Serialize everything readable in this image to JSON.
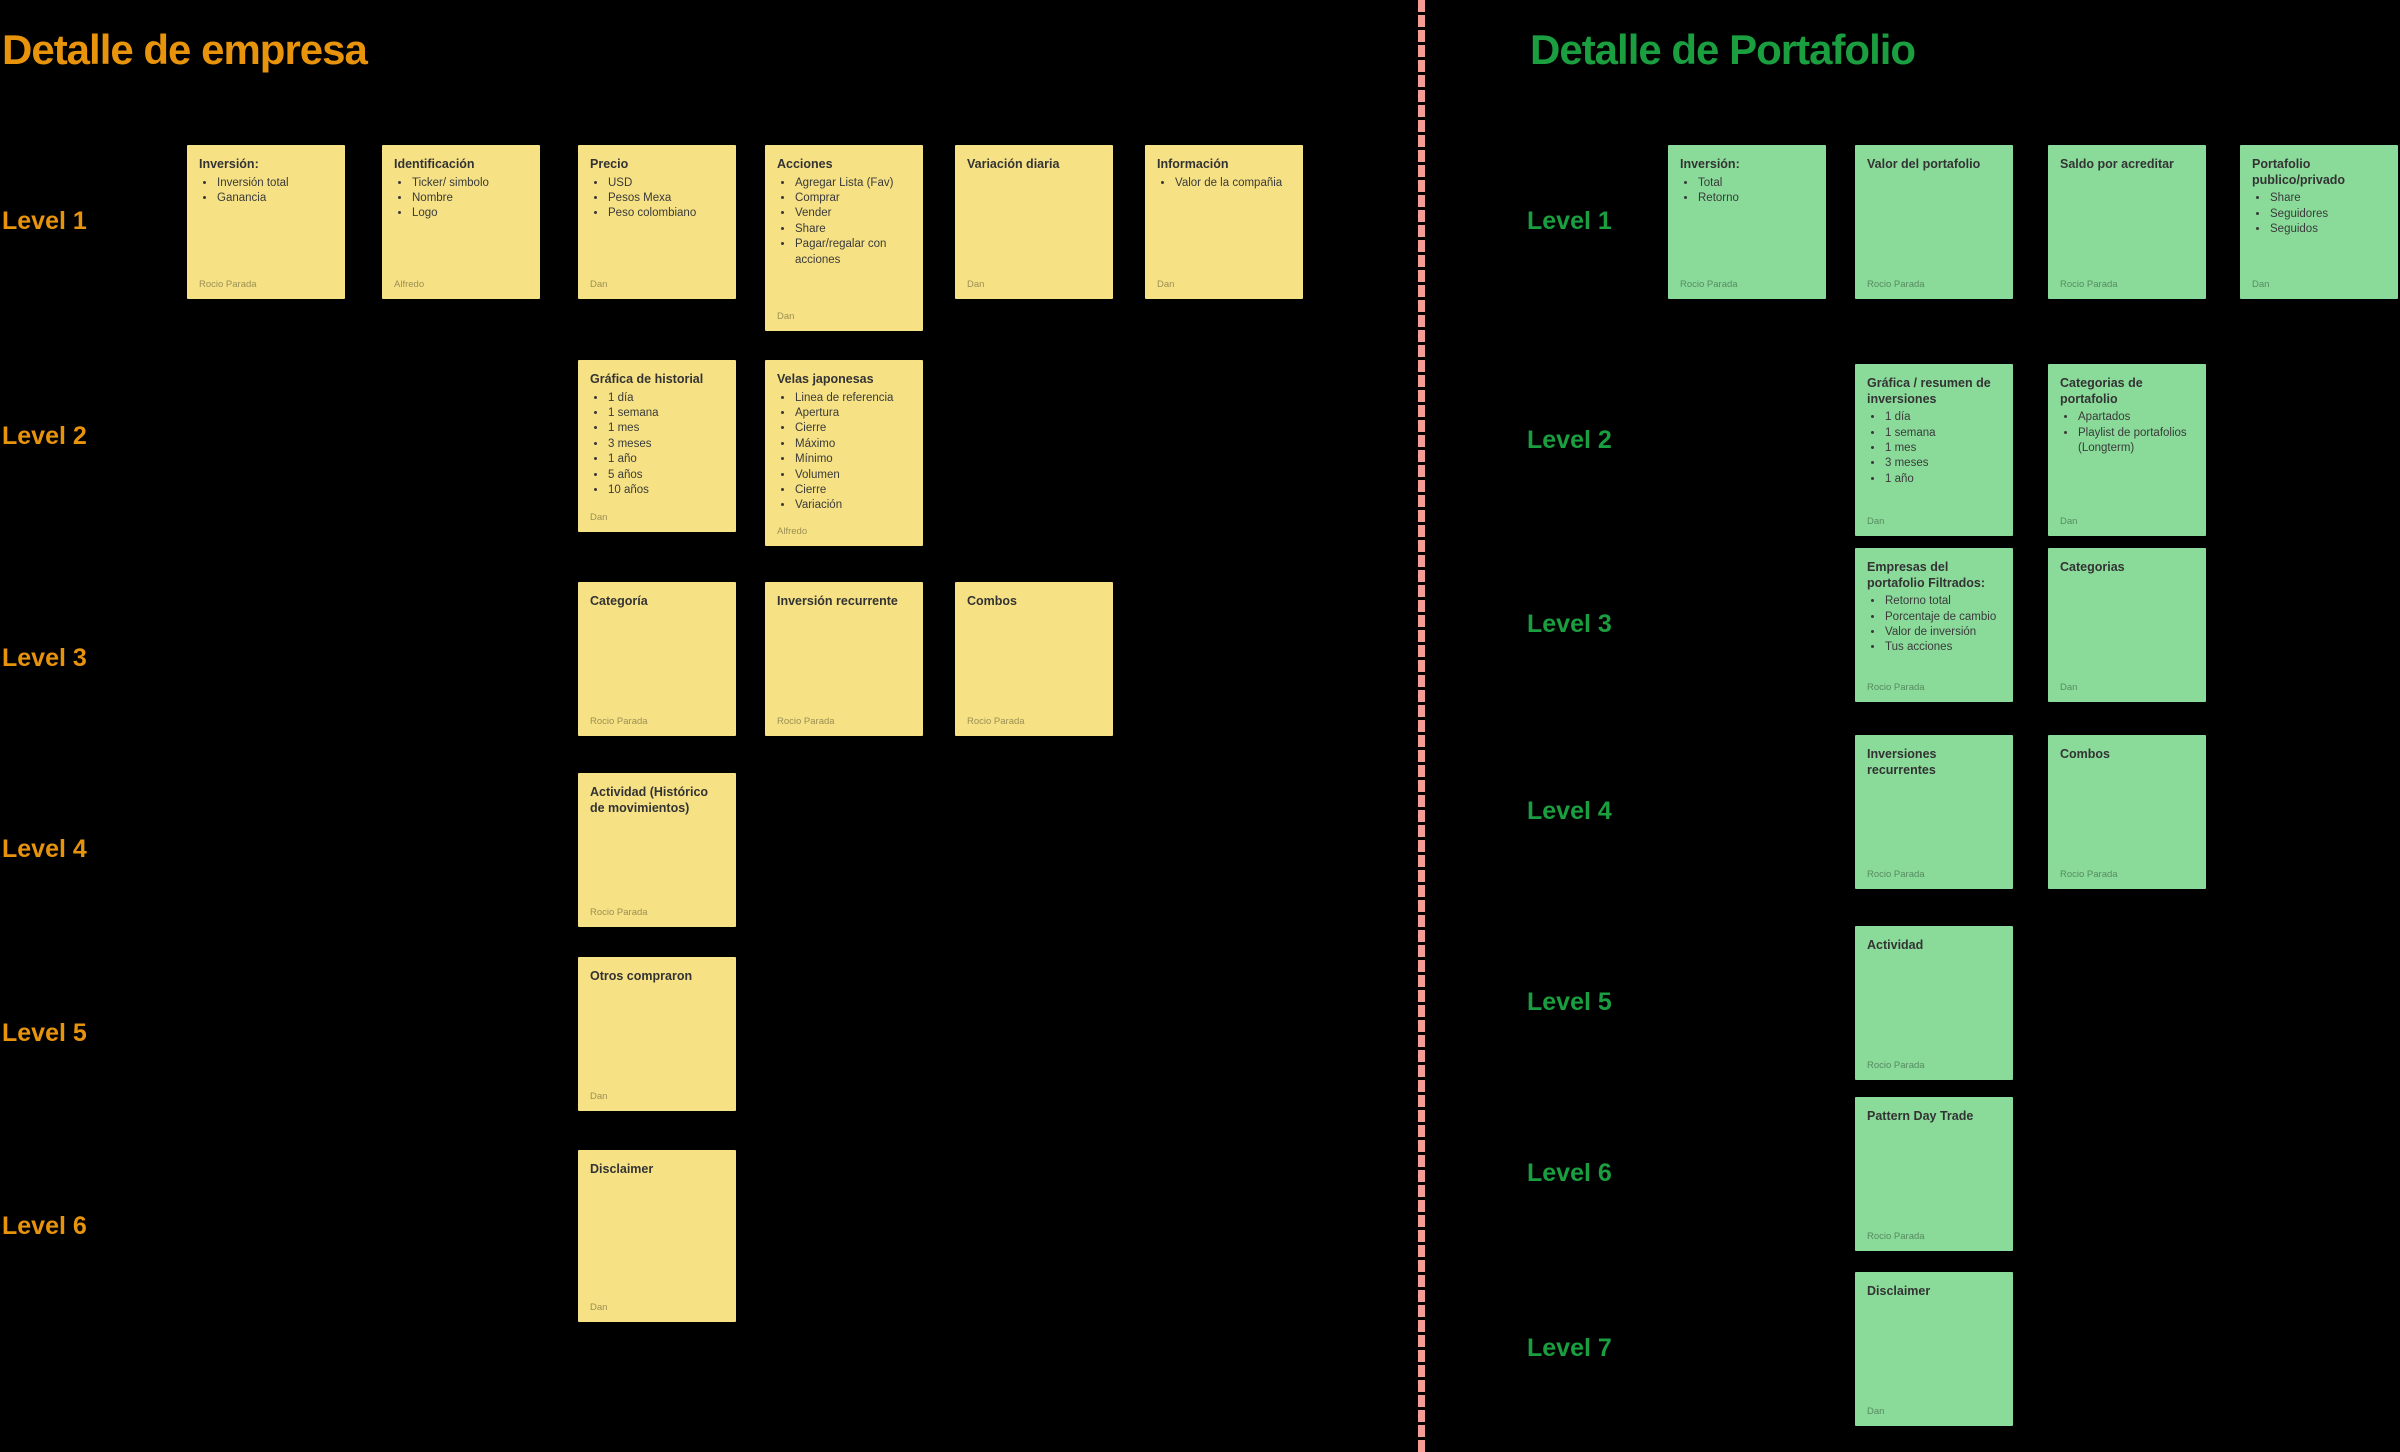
{
  "canvas": {
    "background": "#000000",
    "divider_color": "#F59C94"
  },
  "left_board": {
    "title": "Detalle de empresa",
    "accent_color": "#E8930C",
    "note_color": "#F6E285",
    "level_labels": [
      "Level 1",
      "Level 2",
      "Level 3",
      "Level 4",
      "Level 5",
      "Level 6"
    ],
    "notes": [
      {
        "level": 1,
        "col": 1,
        "title": "Inversión:",
        "bullets": [
          "Inversión total",
          "Ganancia"
        ],
        "author": "Rocio Parada",
        "size": "sm"
      },
      {
        "level": 1,
        "col": 2,
        "title": "Identificación",
        "bullets": [
          "Ticker/ simbolo",
          "Nombre",
          "Logo"
        ],
        "author": "Alfredo",
        "size": "sm"
      },
      {
        "level": 1,
        "col": 3,
        "title": "Precio",
        "bullets": [
          "USD",
          "Pesos Mexa",
          "Peso colombiano"
        ],
        "author": "Dan",
        "size": "sm"
      },
      {
        "level": 1,
        "col": 4,
        "title": "Acciones",
        "bullets": [
          "Agregar Lista (Fav)",
          "Comprar",
          "Vender",
          "Share",
          "Pagar/regalar con acciones"
        ],
        "author": "Dan",
        "size": "lg"
      },
      {
        "level": 1,
        "col": 5,
        "title": "Variación diaria",
        "bullets": [],
        "author": "Dan",
        "size": "sm"
      },
      {
        "level": 1,
        "col": 6,
        "title": "Información",
        "bullets": [
          "Valor de la compañia"
        ],
        "author": "Dan",
        "size": "sm"
      },
      {
        "level": 2,
        "col": 3,
        "title": "Gráfica de historial",
        "bullets": [
          "1 día",
          "1 semana",
          "1 mes",
          "3 meses",
          "1 año",
          "5 años",
          "10 años"
        ],
        "author": "Dan",
        "size": "md"
      },
      {
        "level": 2,
        "col": 4,
        "title": "Velas japonesas",
        "bullets": [
          "Linea de referencia",
          "Apertura",
          "Cierre",
          "Máximo",
          "Mínimo",
          "Volumen",
          "Cierre",
          "Variación"
        ],
        "author": "Alfredo",
        "size": "lg"
      },
      {
        "level": 3,
        "col": 3,
        "title": "Categoría",
        "bullets": [],
        "author": "Rocio Parada",
        "size": "sm"
      },
      {
        "level": 3,
        "col": 4,
        "title": "Inversión recurrente",
        "bullets": [],
        "author": "Rocio Parada",
        "size": "sm"
      },
      {
        "level": 3,
        "col": 5,
        "title": "Combos",
        "bullets": [],
        "author": "Rocio Parada",
        "size": "sm"
      },
      {
        "level": 4,
        "col": 3,
        "title": "Actividad (Histórico de movimientos)",
        "bullets": [],
        "author": "Rocio Parada",
        "size": "sm"
      },
      {
        "level": 5,
        "col": 3,
        "title": "Otros compraron",
        "bullets": [],
        "author": "Dan",
        "size": "sm"
      },
      {
        "level": 6,
        "col": 3,
        "title": "Disclaimer",
        "bullets": [],
        "author": "Dan",
        "size": "md"
      }
    ]
  },
  "right_board": {
    "title": "Detalle de Portafolio",
    "accent_color": "#1A9E3F",
    "note_color": "#8ADB9A",
    "level_labels": [
      "Level 1",
      "Level 2",
      "Level 3",
      "Level 4",
      "Level 5",
      "Level 6",
      "Level 7"
    ],
    "notes": [
      {
        "level": 1,
        "col": 1,
        "title": "Inversión:",
        "bullets": [
          "Total",
          "Retorno"
        ],
        "author": "Rocio Parada",
        "size": "sm"
      },
      {
        "level": 1,
        "col": 2,
        "title": "Valor del portafolio",
        "bullets": [],
        "author": "Rocio Parada",
        "size": "sm"
      },
      {
        "level": 1,
        "col": 3,
        "title": "Saldo por acreditar",
        "bullets": [],
        "author": "Rocio Parada",
        "size": "sm"
      },
      {
        "level": 1,
        "col": 4,
        "title": "Portafolio publico/privado",
        "bullets": [
          "Share",
          "Seguidores",
          "Seguidos"
        ],
        "author": "Dan",
        "size": "sm"
      },
      {
        "level": 2,
        "col": 2,
        "title": "Gráfica / resumen de inversiones",
        "bullets": [
          "1 día",
          "1 semana",
          "1 mes",
          "3 meses",
          "1 año"
        ],
        "author": "Dan",
        "size": "md"
      },
      {
        "level": 2,
        "col": 3,
        "title": "Categorias de portafolio",
        "bullets": [
          "Apartados",
          "Playlist de portafolios (Longterm)"
        ],
        "author": "Dan",
        "size": "md"
      },
      {
        "level": 3,
        "col": 2,
        "title": "Empresas del portafolio Filtrados:",
        "bullets": [
          "Retorno total",
          "Porcentaje de cambio",
          "Valor de inversión",
          "Tus acciones"
        ],
        "author": "Rocio Parada",
        "size": "sm"
      },
      {
        "level": 3,
        "col": 3,
        "title": "Categorias",
        "bullets": [],
        "author": "Dan",
        "size": "sm"
      },
      {
        "level": 4,
        "col": 2,
        "title": "Inversiones recurrentes",
        "bullets": [],
        "author": "Rocio Parada",
        "size": "sm"
      },
      {
        "level": 4,
        "col": 3,
        "title": "Combos",
        "bullets": [],
        "author": "Rocio Parada",
        "size": "sm"
      },
      {
        "level": 5,
        "col": 2,
        "title": "Actividad",
        "bullets": [],
        "author": "Rocio Parada",
        "size": "sm"
      },
      {
        "level": 6,
        "col": 2,
        "title": "Pattern Day Trade",
        "bullets": [],
        "author": "Rocio Parada",
        "size": "sm"
      },
      {
        "level": 7,
        "col": 2,
        "title": "Disclaimer",
        "bullets": [],
        "author": "Dan",
        "size": "sm"
      }
    ]
  }
}
